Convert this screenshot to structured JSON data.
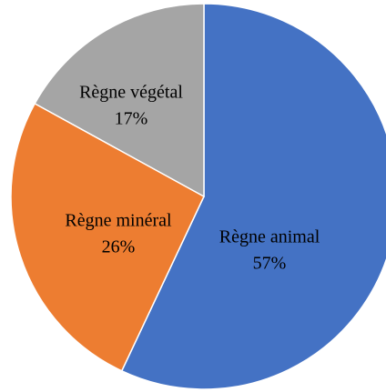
{
  "chart_data": {
    "type": "pie",
    "categories": [
      "Règne animal",
      "Règne minéral",
      "Règne végétal"
    ],
    "values": [
      57,
      26,
      17
    ],
    "value_labels": [
      "57%",
      "26%",
      "17%"
    ],
    "colors": [
      "#4472c4",
      "#ed7d31",
      "#a5a5a5"
    ]
  }
}
